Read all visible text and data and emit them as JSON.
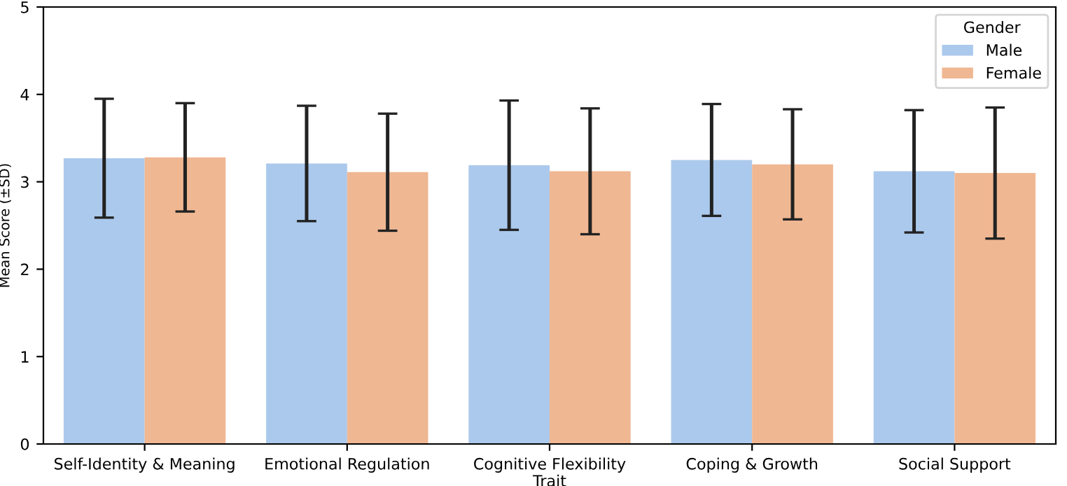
{
  "chart_data": {
    "type": "bar",
    "xlabel": "Trait",
    "ylabel": "Mean Score (±SD)",
    "legend_title": "Gender",
    "categories": [
      "Self-Identity & Meaning",
      "Emotional Regulation",
      "Cognitive Flexibility",
      "Coping & Growth",
      "Social Support"
    ],
    "series": [
      {
        "name": "Male",
        "color": "#abc9ec",
        "values": [
          3.27,
          3.21,
          3.19,
          3.25,
          3.12
        ],
        "errors": [
          0.68,
          0.66,
          0.74,
          0.64,
          0.7
        ]
      },
      {
        "name": "Female",
        "color": "#efb792",
        "values": [
          3.28,
          3.11,
          3.12,
          3.2,
          3.1
        ],
        "errors": [
          0.62,
          0.67,
          0.72,
          0.63,
          0.75
        ]
      }
    ],
    "ylim": [
      0,
      5
    ],
    "yticks": [
      0,
      1,
      2,
      3,
      4,
      5
    ],
    "grid": false,
    "legend": "top right"
  }
}
